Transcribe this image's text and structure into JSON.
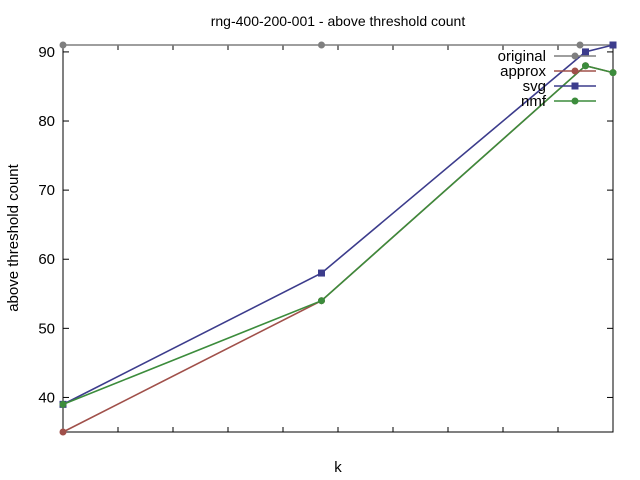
{
  "chart_data": {
    "type": "line",
    "title": "rng-400-200-001 - above threshold count",
    "xlabel": "k",
    "ylabel": "above threshold count",
    "xlim": [
      0,
      100
    ],
    "ylim": [
      35,
      91
    ],
    "yticks": [
      40,
      50,
      60,
      70,
      80,
      90
    ],
    "legend_position": "top-right",
    "series": [
      {
        "name": "original",
        "color": "#7f7f7f",
        "marker": "circle",
        "points": [
          [
            0,
            91
          ],
          [
            47,
            91
          ],
          [
            94,
            91
          ],
          [
            100,
            91
          ]
        ]
      },
      {
        "name": "approx",
        "color": "#a0504a",
        "marker": "circle",
        "points": [
          [
            0,
            35
          ],
          [
            47,
            54
          ],
          [
            95,
            88
          ],
          [
            100,
            87
          ]
        ]
      },
      {
        "name": "svg",
        "color": "#3c3c8c",
        "marker": "square",
        "points": [
          [
            0,
            39
          ],
          [
            47,
            58
          ],
          [
            95,
            90
          ],
          [
            100,
            91
          ]
        ]
      },
      {
        "name": "nmf",
        "color": "#3c8c3c",
        "marker": "circle",
        "points": [
          [
            0,
            39
          ],
          [
            47,
            54
          ],
          [
            95,
            88
          ],
          [
            100,
            87
          ]
        ]
      }
    ]
  }
}
